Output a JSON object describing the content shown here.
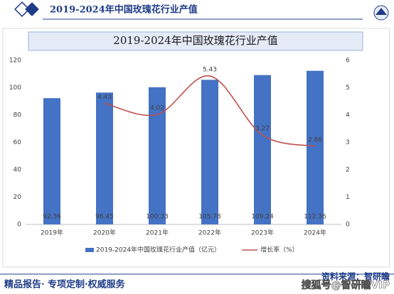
{
  "header": {
    "title": "2019-2024年中国玫瑰花行业产值"
  },
  "chart_data": {
    "type": "bar",
    "title": "2019-2024年中国玫瑰花行业产值",
    "categories": [
      "2019年",
      "2020年",
      "2021年",
      "2022年",
      "2023年",
      "2024年"
    ],
    "series": [
      {
        "name": "2019-2024年中国玫瑰花行业产值（亿元）",
        "type": "bar",
        "color": "#4472c4",
        "values": [
          92.36,
          96.45,
          100.33,
          105.78,
          109.24,
          112.36
        ]
      },
      {
        "name": "增长率（%）",
        "type": "line",
        "axis": "y2",
        "color": "#c0504d",
        "smooth": true,
        "values": [
          null,
          4.43,
          4.02,
          5.43,
          3.27,
          2.86
        ]
      }
    ],
    "ylim": [
      0,
      120
    ],
    "yticks": [
      0,
      20,
      40,
      60,
      80,
      100,
      120
    ],
    "y2lim": [
      0,
      6
    ],
    "y2ticks": [
      0,
      1,
      2,
      3,
      4,
      5,
      6
    ],
    "grid": false,
    "legend": "bottom"
  },
  "footer": {
    "slogan": "精品报告· 专项定制·权威服务",
    "source": "资料来源：智研瞻"
  },
  "watermark": "搜狐号@智研瞻VIP"
}
